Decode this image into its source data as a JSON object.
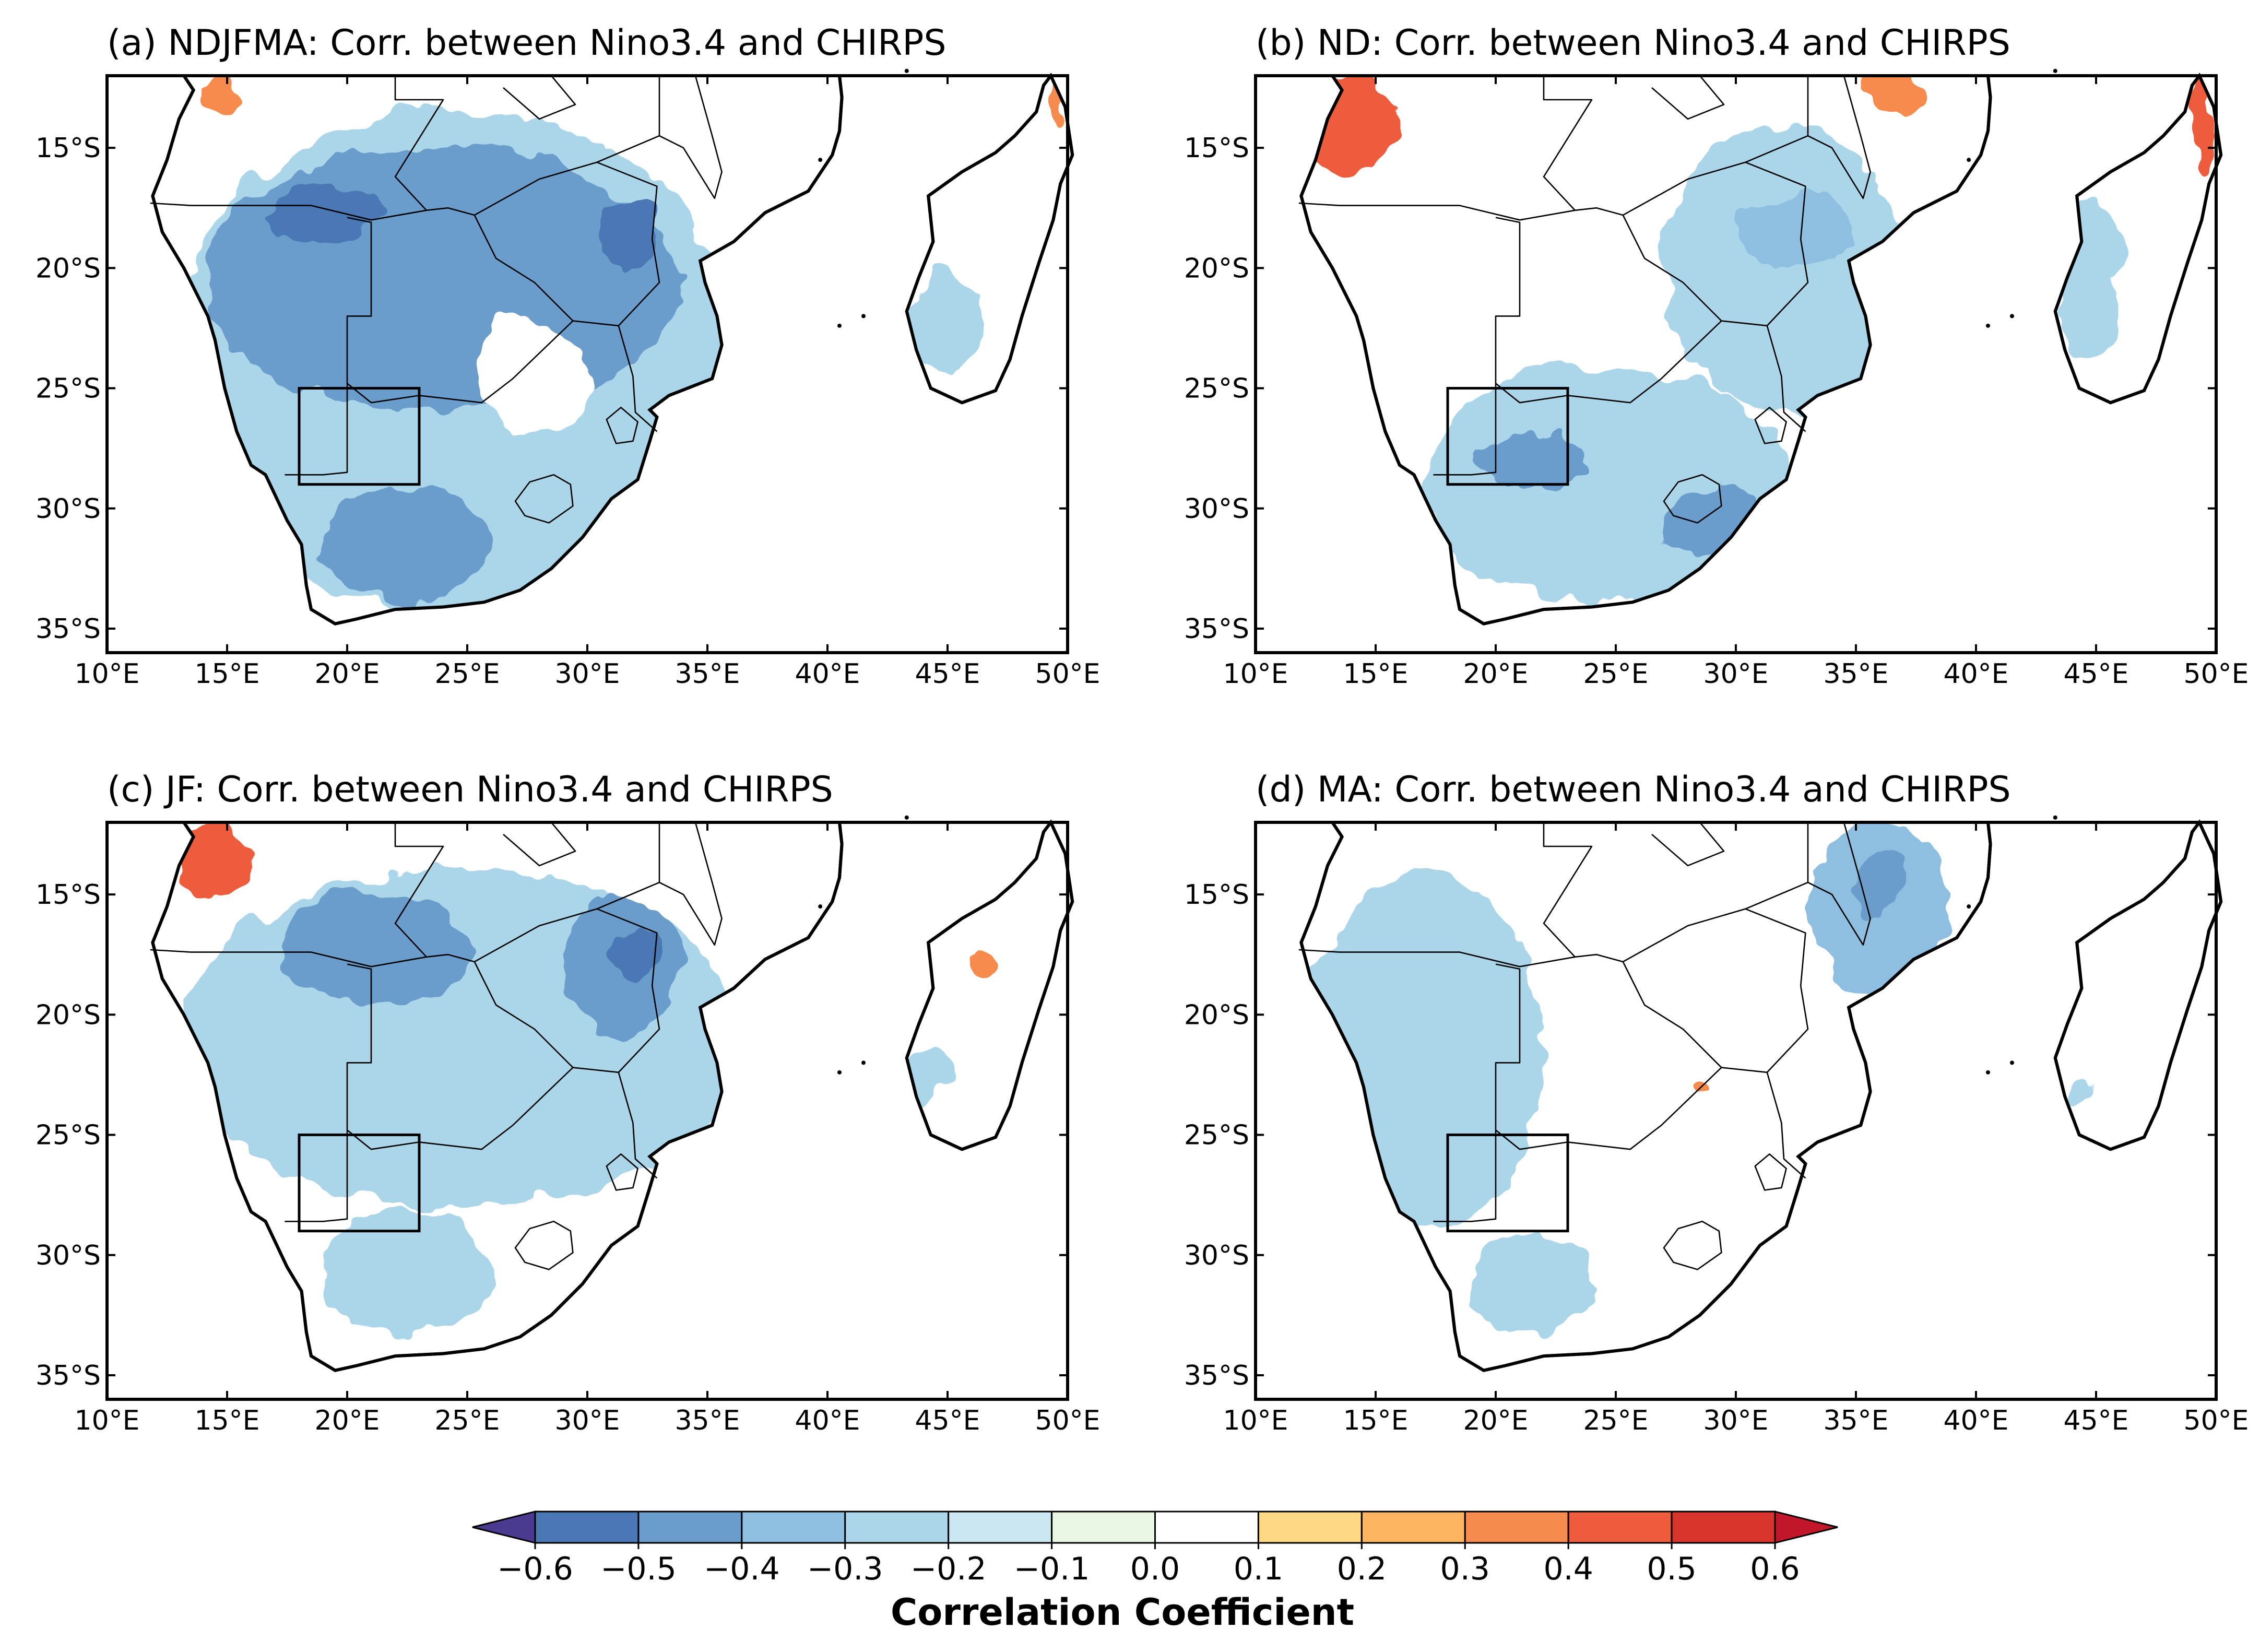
{
  "colors": {
    "c-0.7": "#4b3a8f",
    "c-0.6": "#4a78b4",
    "c-0.5": "#6a9ccc",
    "c-0.4": "#8ebfe0",
    "c-0.3": "#abd6ea",
    "c-0.2": "#cbe8f2",
    "c-0.1": "#e9f6e4",
    "c0.0": "#ffffff",
    "c0.1": "#fed885",
    "c0.2": "#fdb463",
    "c0.3": "#f68b4e",
    "c0.4": "#ec5c3d",
    "c0.5": "#d7342d",
    "c0.6": "#c2172b"
  },
  "axis_ticks": {
    "x_labels": [
      "10°E",
      "15°E",
      "20°E",
      "25°E",
      "30°E",
      "35°E",
      "40°E",
      "45°E",
      "50°E"
    ],
    "y_labels": [
      "15°S",
      "20°S",
      "25°S",
      "30°S",
      "35°S"
    ]
  },
  "colorbar": {
    "title": "Correlation Coefficient",
    "labels": [
      "−0.6",
      "−0.5",
      "−0.4",
      "−0.3",
      "−0.2",
      "−0.1",
      "0.0",
      "0.1",
      "0.2",
      "0.3",
      "0.4",
      "0.5",
      "0.6"
    ],
    "extend": "both"
  },
  "panels": [
    {
      "title": "(a) NDJFMA: Corr. between Nino3.4 and CHIRPS"
    },
    {
      "title": "(b) ND: Corr. between Nino3.4 and CHIRPS"
    },
    {
      "title": "(c) JF: Corr. between Nino3.4 and CHIRPS"
    },
    {
      "title": "(d) MA: Corr. between Nino3.4 and CHIRPS"
    }
  ],
  "chart_data": {
    "type": "map",
    "projection": "PlateCarree",
    "lon_range": [
      10,
      50
    ],
    "lat_range": [
      -36,
      -12
    ],
    "x_ticks": [
      10,
      15,
      20,
      25,
      30,
      35,
      40,
      45,
      50
    ],
    "y_ticks": [
      -15,
      -20,
      -25,
      -30,
      -35
    ],
    "study_box": {
      "lon": [
        18,
        23
      ],
      "lat": [
        -29,
        -25
      ]
    },
    "color_levels": [
      -0.6,
      -0.5,
      -0.4,
      -0.3,
      -0.2,
      -0.1,
      0.0,
      0.1,
      0.2,
      0.3,
      0.4,
      0.5,
      0.6
    ],
    "variable": "Correlation between Nino3.4 index and CHIRPS precipitation",
    "panels": [
      {
        "id": "a",
        "season": "NDJFMA",
        "regions": [
          {
            "level": -0.3,
            "lon": [
              12.5,
              36.5
            ],
            "lat": [
              -34.5,
              -13.5
            ]
          },
          {
            "level": -0.5,
            "lon": [
              14,
              34
            ],
            "lat": [
              -26,
              -15
            ]
          },
          {
            "level": -0.6,
            "lon": [
              16.5,
              21.5
            ],
            "lat": [
              -19,
              -16.5
            ]
          },
          {
            "level": -0.6,
            "lon": [
              30.5,
              33
            ],
            "lat": [
              -20,
              -17
            ]
          },
          {
            "level": -0.5,
            "lon": [
              19,
              26
            ],
            "lat": [
              -34,
              -29
            ]
          },
          {
            "level": 0.0,
            "lon": [
              25.5,
              30
            ],
            "lat": [
              -27,
              -22
            ]
          },
          {
            "level": 0.3,
            "lon": [
              14,
              15.5
            ],
            "lat": [
              -13.5,
              -12
            ]
          },
          {
            "level": 0.3,
            "lon": [
              49.5,
              50
            ],
            "lat": [
              -14,
              -12
            ]
          },
          {
            "level": -0.3,
            "lon": [
              43.5,
              46.5
            ],
            "lat": [
              -24.5,
              -20
            ]
          }
        ]
      },
      {
        "id": "b",
        "season": "ND",
        "regions": [
          {
            "level": -0.3,
            "lon": [
              27,
              37
            ],
            "lat": [
              -26,
              -14
            ]
          },
          {
            "level": -0.4,
            "lon": [
              30,
              35
            ],
            "lat": [
              -20,
              -17
            ]
          },
          {
            "level": -0.3,
            "lon": [
              17,
              32
            ],
            "lat": [
              -34,
              -24
            ]
          },
          {
            "level": -0.5,
            "lon": [
              19,
              24
            ],
            "lat": [
              -29,
              -27
            ]
          },
          {
            "level": -0.5,
            "lon": [
              27,
              31
            ],
            "lat": [
              -32,
              -29
            ]
          },
          {
            "level": 0.4,
            "lon": [
              12,
              16
            ],
            "lat": [
              -16,
              -12
            ]
          },
          {
            "level": 0.3,
            "lon": [
              35,
              38
            ],
            "lat": [
              -13.5,
              -12
            ]
          },
          {
            "level": 0.4,
            "lon": [
              49,
              50
            ],
            "lat": [
              -16,
              -12
            ]
          },
          {
            "level": -0.3,
            "lon": [
              43.5,
              46
            ],
            "lat": [
              -24,
              -17
            ]
          }
        ]
      },
      {
        "id": "c",
        "season": "JF",
        "regions": [
          {
            "level": -0.3,
            "lon": [
              13,
              36.5
            ],
            "lat": [
              -28,
              -14
            ]
          },
          {
            "level": -0.5,
            "lon": [
              17,
              25
            ],
            "lat": [
              -19.5,
              -15
            ]
          },
          {
            "level": -0.5,
            "lon": [
              29,
              34
            ],
            "lat": [
              -21,
              -15
            ]
          },
          {
            "level": -0.6,
            "lon": [
              31,
              33
            ],
            "lat": [
              -18.5,
              -16.5
            ]
          },
          {
            "level": -0.3,
            "lon": [
              19,
              26
            ],
            "lat": [
              -33.5,
              -28
            ]
          },
          {
            "level": 0.4,
            "lon": [
              13,
              16
            ],
            "lat": [
              -15,
              -12
            ]
          },
          {
            "level": 0.3,
            "lon": [
              46,
              47
            ],
            "lat": [
              -18.5,
              -17.5
            ]
          },
          {
            "level": -0.3,
            "lon": [
              43.5,
              45
            ],
            "lat": [
              -24,
              -21
            ]
          }
        ]
      },
      {
        "id": "d",
        "season": "MA",
        "regions": [
          {
            "level": -0.3,
            "lon": [
              12,
              22
            ],
            "lat": [
              -29,
              -14
            ]
          },
          {
            "level": -0.3,
            "lon": [
              19,
              24
            ],
            "lat": [
              -33.5,
              -29
            ]
          },
          {
            "level": -0.4,
            "lon": [
              33,
              39
            ],
            "lat": [
              -19,
              -12
            ]
          },
          {
            "level": -0.5,
            "lon": [
              35,
              37
            ],
            "lat": [
              -16,
              -13
            ]
          },
          {
            "level": 0.3,
            "lon": [
              28,
              29
            ],
            "lat": [
              -23,
              -22.5
            ]
          },
          {
            "level": -0.3,
            "lon": [
              44,
              45
            ],
            "lat": [
              -24,
              -23
            ]
          }
        ]
      }
    ]
  }
}
